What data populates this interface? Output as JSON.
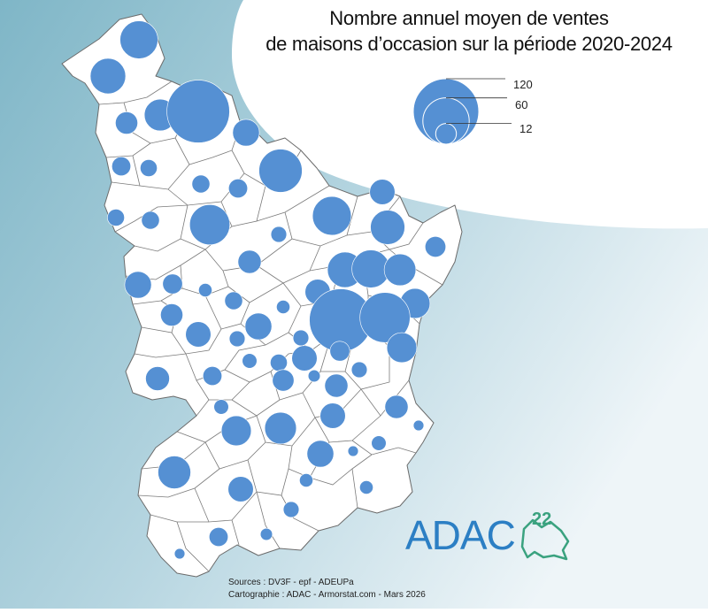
{
  "title": {
    "line1": "Nombre annuel moyen de ventes",
    "line2": "de maisons d’occasion sur la période 2020-2024"
  },
  "legend": {
    "values": [
      120,
      60,
      12
    ],
    "labels": [
      "120",
      "60",
      "12"
    ],
    "bubble_color": "#5590d3"
  },
  "sources": {
    "line1": "Sources : DV3F - epf - ADEUPa",
    "line2": "Cartographie : ADAC - Armorstat.com - Mars 2026"
  },
  "logo": {
    "text": "ADAC",
    "number": "22"
  },
  "colors": {
    "sea_dark": "#7fb6c7",
    "sea_light": "#e9f2f6",
    "land": "#ffffff",
    "border": "#6b6b6b",
    "logo_blue": "#2c7fc4",
    "logo_green": "#3aa27f"
  },
  "bubbles_values": [
    40,
    35,
    28,
    110,
    14,
    20,
    10,
    8,
    9,
    8,
    10,
    52,
    18,
    9,
    45,
    7,
    42,
    33,
    12,
    15,
    35,
    40,
    28,
    20,
    11,
    5,
    9,
    5,
    18,
    25,
    110,
    70,
    14,
    18,
    7,
    20,
    6,
    7,
    18,
    8,
    4,
    25,
    11,
    7,
    15,
    10,
    16,
    6,
    13,
    15,
    18,
    25,
    28,
    30,
    18,
    5,
    6,
    3,
    3,
    20,
    5,
    7,
    10,
    4,
    3,
    20
  ]
}
